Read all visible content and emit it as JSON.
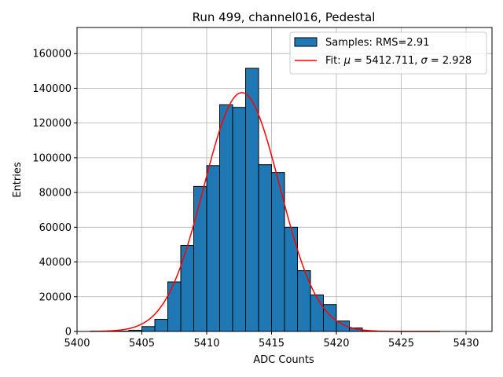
{
  "chart_data": {
    "type": "bar",
    "title": "Run 499, channel016, Pedestal",
    "xlabel": "ADC Counts",
    "ylabel": "Entries",
    "xlim": [
      5400,
      5432
    ],
    "ylim": [
      0,
      175000
    ],
    "grid": true,
    "legend_placement": "top-right",
    "xticks": [
      5400,
      5405,
      5410,
      5415,
      5420,
      5425,
      5430
    ],
    "yticks": [
      0,
      20000,
      40000,
      60000,
      80000,
      100000,
      120000,
      140000,
      160000
    ],
    "bins": {
      "bin_width": 1,
      "left_edges": [
        5403,
        5404,
        5405,
        5406,
        5407,
        5408,
        5409,
        5410,
        5411,
        5412,
        5413,
        5414,
        5415,
        5416,
        5417,
        5418,
        5419,
        5420,
        5421,
        5422
      ],
      "counts": [
        200,
        700,
        2800,
        7000,
        28500,
        49500,
        83500,
        95500,
        130500,
        129000,
        151500,
        96000,
        91500,
        60000,
        35000,
        21000,
        15500,
        6000,
        2000,
        400
      ]
    },
    "fit": {
      "mu": 5412.711,
      "sigma": 2.928,
      "amplitude": 137500,
      "x_range": [
        5401,
        5428
      ]
    },
    "series": [
      {
        "name": "Samples: RMS=2.91",
        "color": "#1f77b4",
        "edge_color": "#000000"
      },
      {
        "name_prefix": "Fit: ",
        "mu_symbol": "μ",
        "mu_text": " = 5412.711, ",
        "sigma_symbol": "σ",
        "sigma_text": " = 2.928",
        "color": "#ff0000"
      }
    ]
  }
}
